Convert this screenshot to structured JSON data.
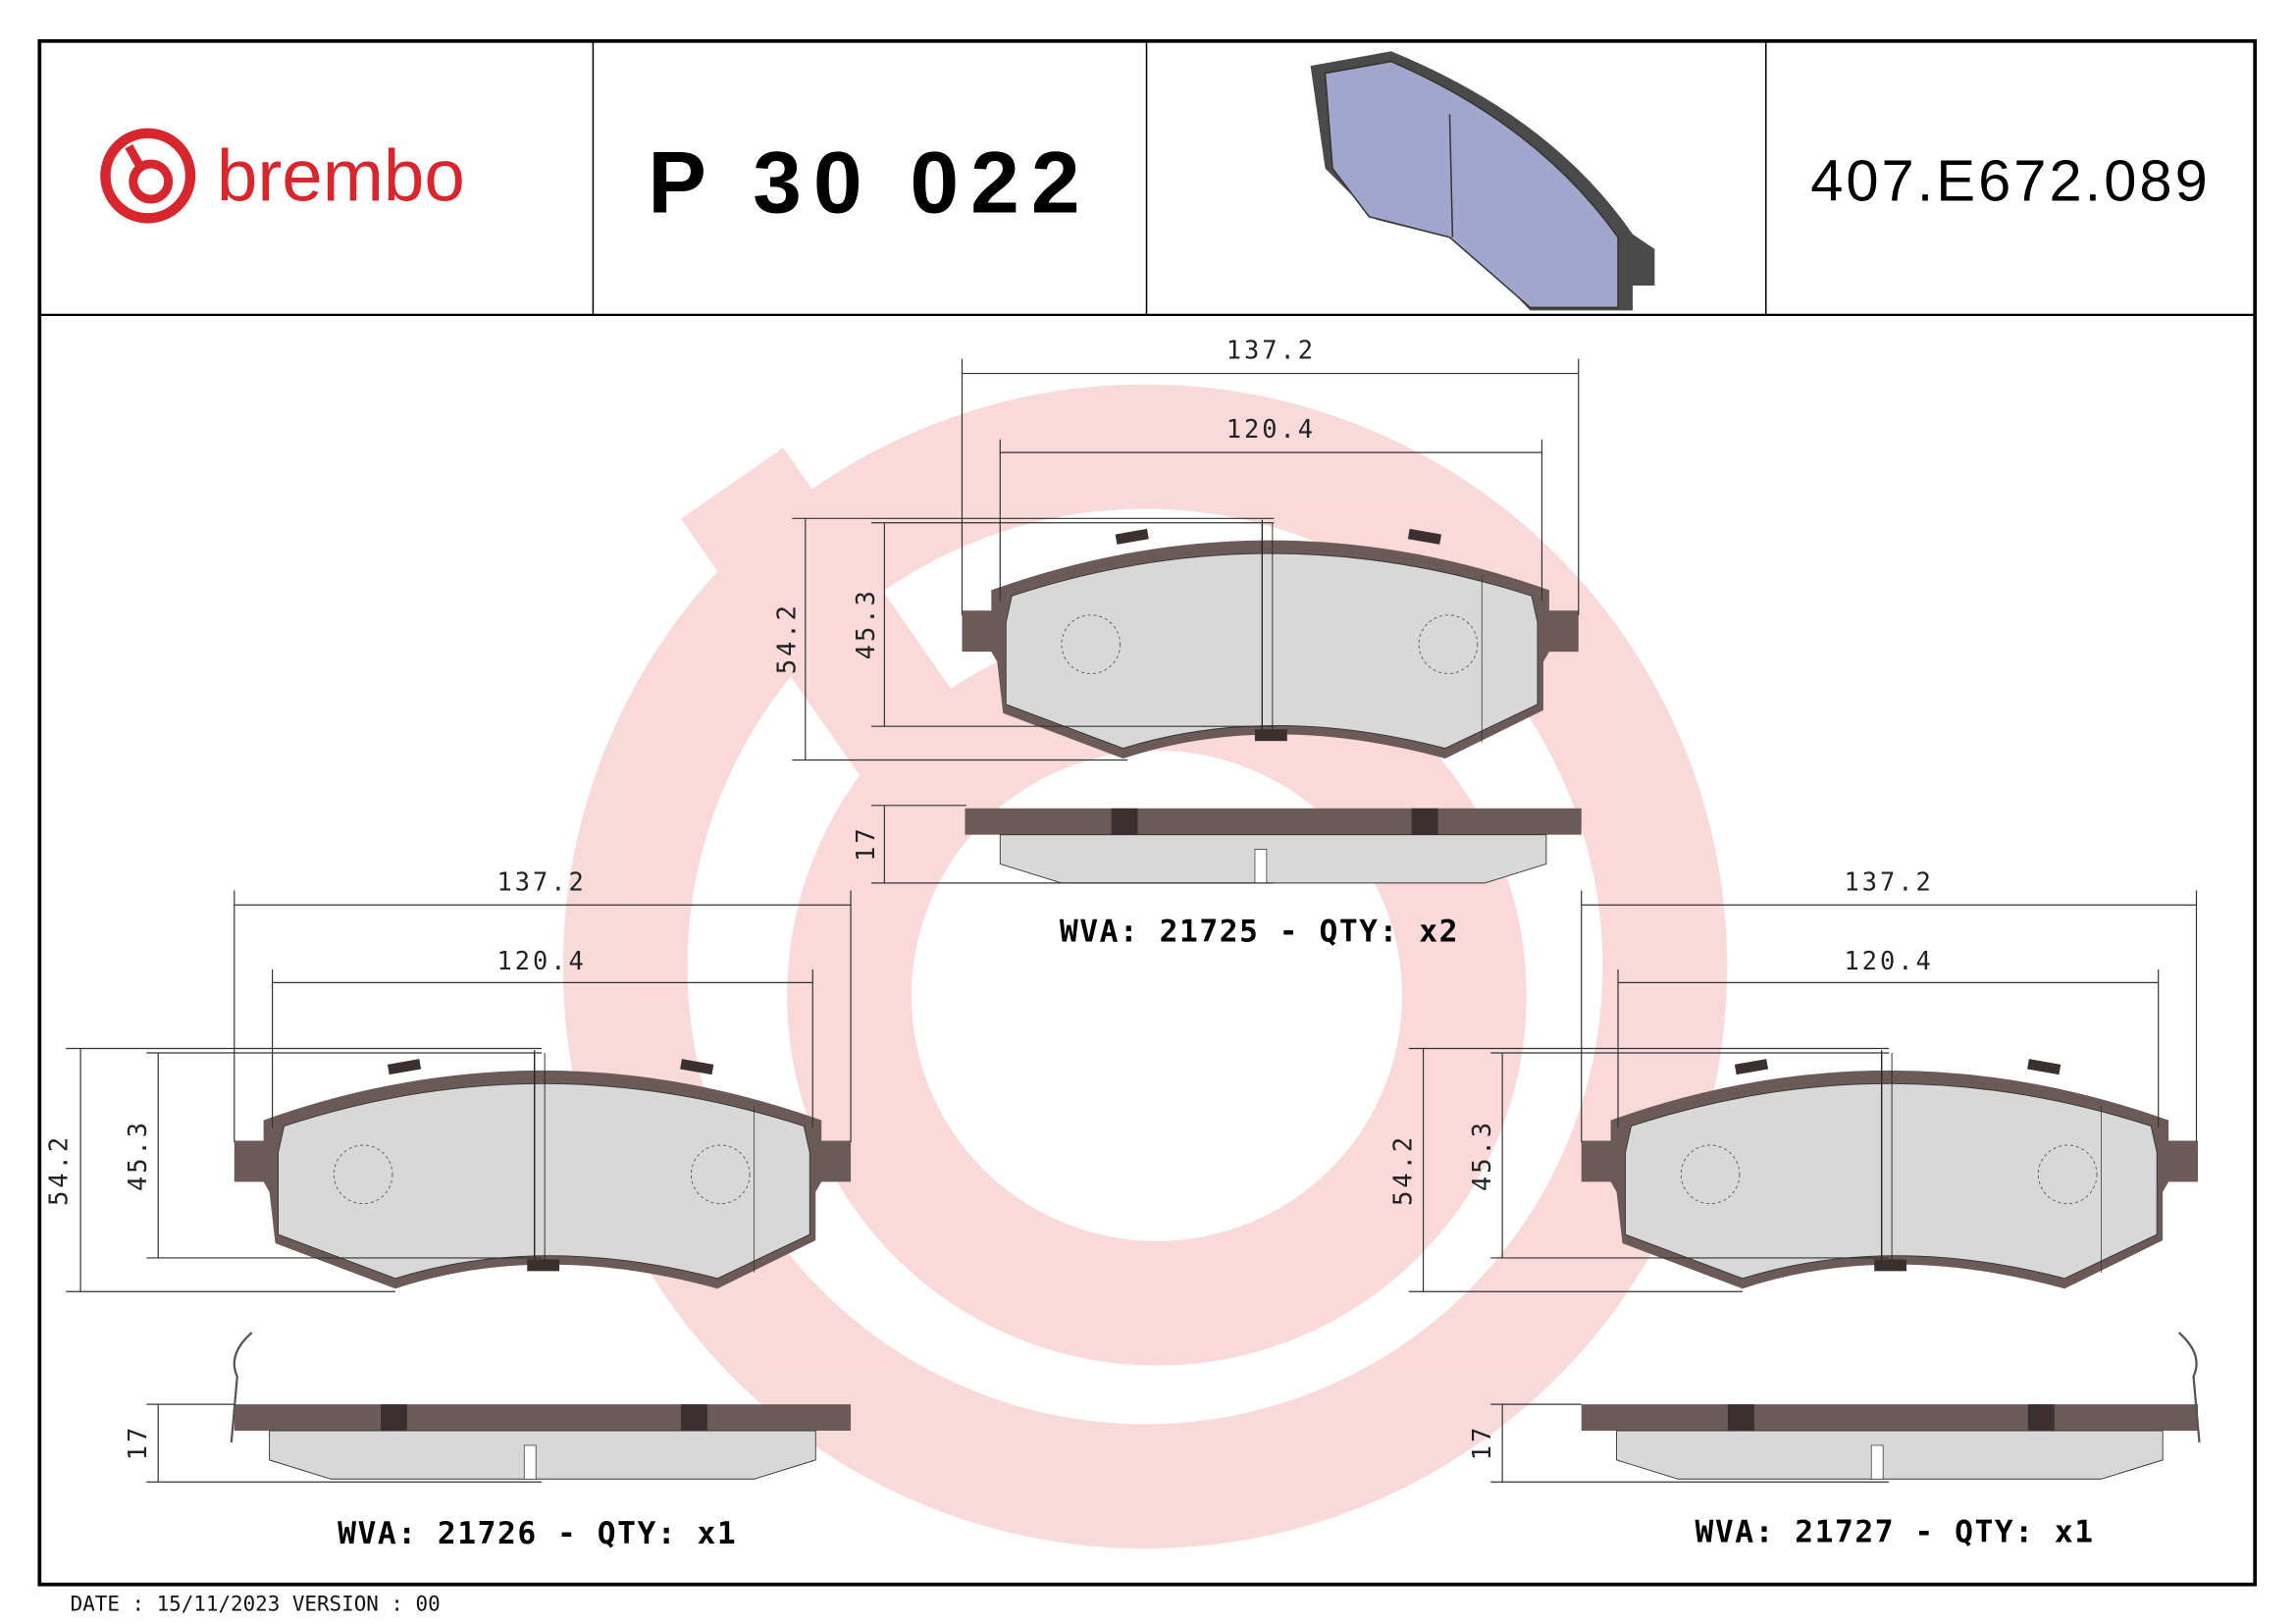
{
  "header": {
    "brand": "brembo",
    "part_number": "P 30 022",
    "reference": "407.E672.089"
  },
  "colors": {
    "brand_red": "#d8262e",
    "watermark": "#f6cfcf",
    "backplate": "#6b5a58",
    "friction": "#d8d8d8",
    "thumbnail": "#a3a6cc"
  },
  "views": [
    {
      "width_outer": "137.2",
      "width_inner": "120.4",
      "height_outer": "54.2",
      "height_inner": "45.3",
      "thickness": "17",
      "caption": "WVA: 21725 - QTY: x2"
    },
    {
      "width_outer": "137.2",
      "width_inner": "120.4",
      "height_outer": "54.2",
      "height_inner": "45.3",
      "thickness": "17",
      "caption": "WVA: 21726 - QTY: x1"
    },
    {
      "width_outer": "137.2",
      "width_inner": "120.4",
      "height_outer": "54.2",
      "height_inner": "45.3",
      "thickness": "17",
      "caption": "WVA: 21727 - QTY: x1"
    }
  ],
  "footer": {
    "date_version": "DATE : 15/11/2023 VERSION : 00"
  }
}
